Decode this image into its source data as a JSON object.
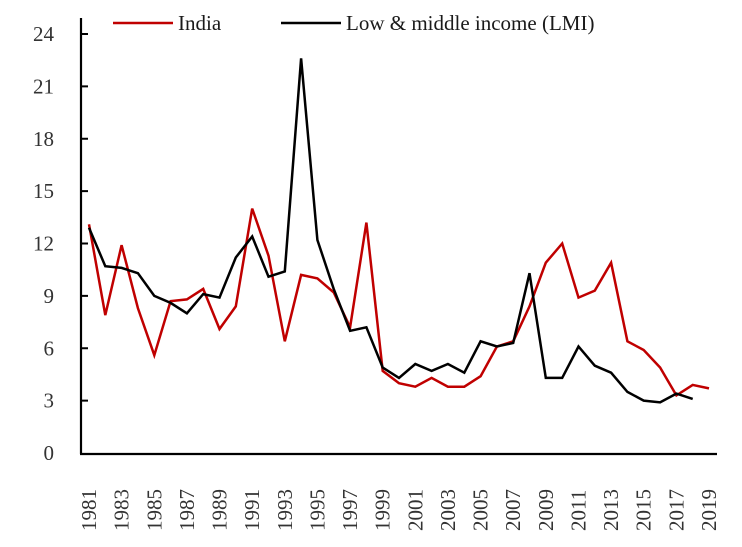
{
  "chart_data": {
    "type": "line",
    "title": "",
    "xlabel": "",
    "ylabel": "",
    "ylim": [
      0,
      24
    ],
    "yticks": [
      0,
      3,
      6,
      9,
      12,
      15,
      18,
      21,
      24
    ],
    "ytick_labels": [
      "0",
      "3",
      "6",
      "9",
      "12",
      "15",
      "18",
      "21",
      "24"
    ],
    "xlim": [
      1981,
      2019
    ],
    "xtick_labels": [
      "1981",
      "1983",
      "1985",
      "1987",
      "1989",
      "1991",
      "1993",
      "1995",
      "1997",
      "1999",
      "2001",
      "2003",
      "2005",
      "2007",
      "2009",
      "2011",
      "2013",
      "2015",
      "2017",
      "2019"
    ],
    "grid": false,
    "legend_position": "top",
    "series": [
      {
        "name": "India",
        "color": "#c00000",
        "x": [
          1981,
          1982,
          1983,
          1984,
          1985,
          1986,
          1987,
          1988,
          1989,
          1990,
          1991,
          1992,
          1993,
          1994,
          1995,
          1996,
          1997,
          1998,
          1999,
          2000,
          2001,
          2002,
          2003,
          2004,
          2005,
          2006,
          2007,
          2008,
          2009,
          2010,
          2011,
          2012,
          2013,
          2014,
          2015,
          2016,
          2017,
          2018,
          2019
        ],
        "values": [
          13.1,
          7.9,
          11.9,
          8.3,
          5.6,
          8.7,
          8.8,
          9.4,
          7.1,
          8.4,
          14.0,
          11.3,
          6.4,
          10.2,
          10.0,
          9.2,
          7.2,
          13.2,
          4.7,
          4.0,
          3.8,
          4.3,
          3.8,
          3.8,
          4.4,
          6.1,
          6.4,
          8.4,
          10.9,
          12.0,
          8.9,
          9.3,
          10.9,
          6.4,
          5.9,
          4.9,
          3.3,
          3.9,
          3.7
        ]
      },
      {
        "name": "Low & middle income (LMI)",
        "color": "#000000",
        "x": [
          1981,
          1982,
          1983,
          1984,
          1985,
          1986,
          1987,
          1988,
          1989,
          1990,
          1991,
          1992,
          1993,
          1994,
          1995,
          1996,
          1997,
          1998,
          1999,
          2000,
          2001,
          2002,
          2003,
          2004,
          2005,
          2006,
          2007,
          2008,
          2009,
          2010,
          2011,
          2012,
          2013,
          2014,
          2015,
          2016,
          2017,
          2018
        ],
        "values": [
          12.9,
          10.7,
          10.6,
          10.3,
          9.0,
          8.6,
          8.0,
          9.1,
          8.9,
          11.2,
          12.4,
          10.1,
          10.4,
          22.6,
          12.2,
          9.4,
          7.0,
          7.2,
          4.9,
          4.3,
          5.1,
          4.7,
          5.1,
          4.6,
          6.4,
          6.1,
          6.3,
          10.3,
          4.3,
          4.3,
          6.1,
          5.0,
          4.6,
          3.5,
          3.0,
          2.9,
          3.4,
          3.1
        ]
      }
    ]
  }
}
